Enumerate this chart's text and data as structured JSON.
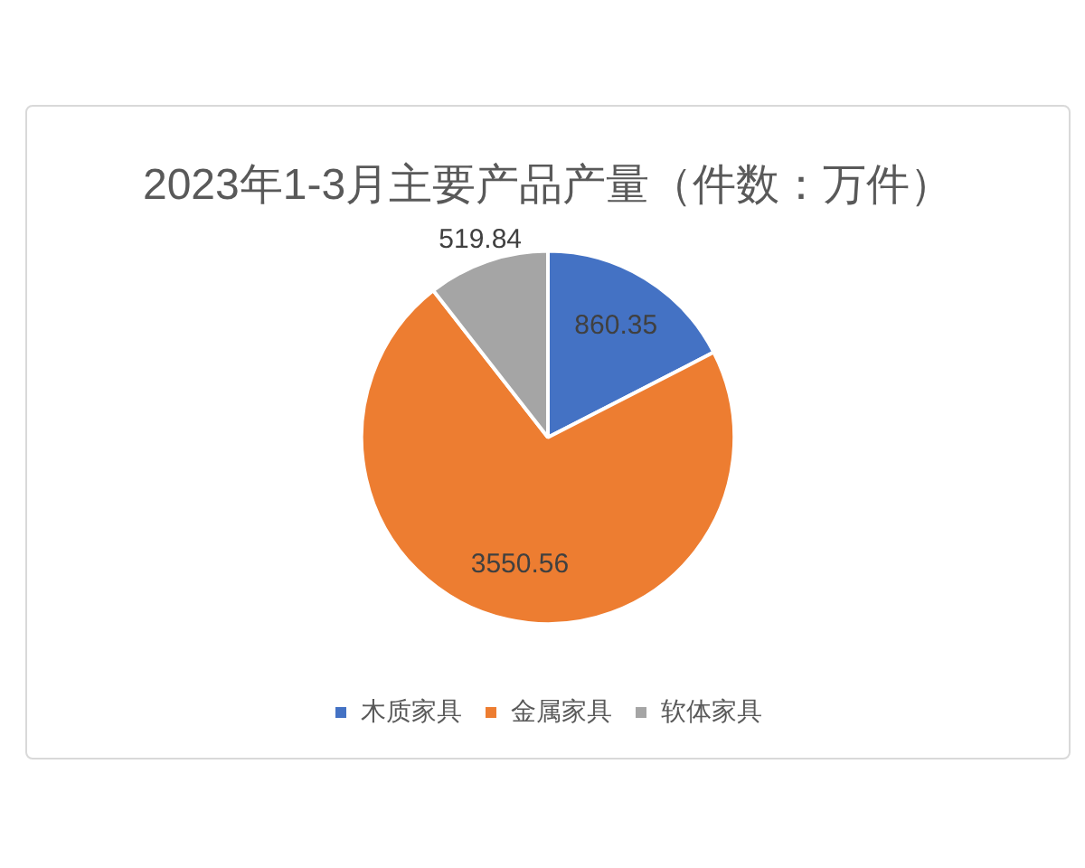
{
  "chart_data": {
    "type": "pie",
    "title": "2023年1-3月主要产品产量（件数：万件）",
    "categories": [
      "木质家具",
      "金属家具",
      "软体家具"
    ],
    "values": [
      860.35,
      3550.56,
      519.84
    ],
    "colors": [
      "#4472c4",
      "#ed7d31",
      "#a5a5a5"
    ],
    "data_labels": true,
    "legend": "bottom"
  }
}
